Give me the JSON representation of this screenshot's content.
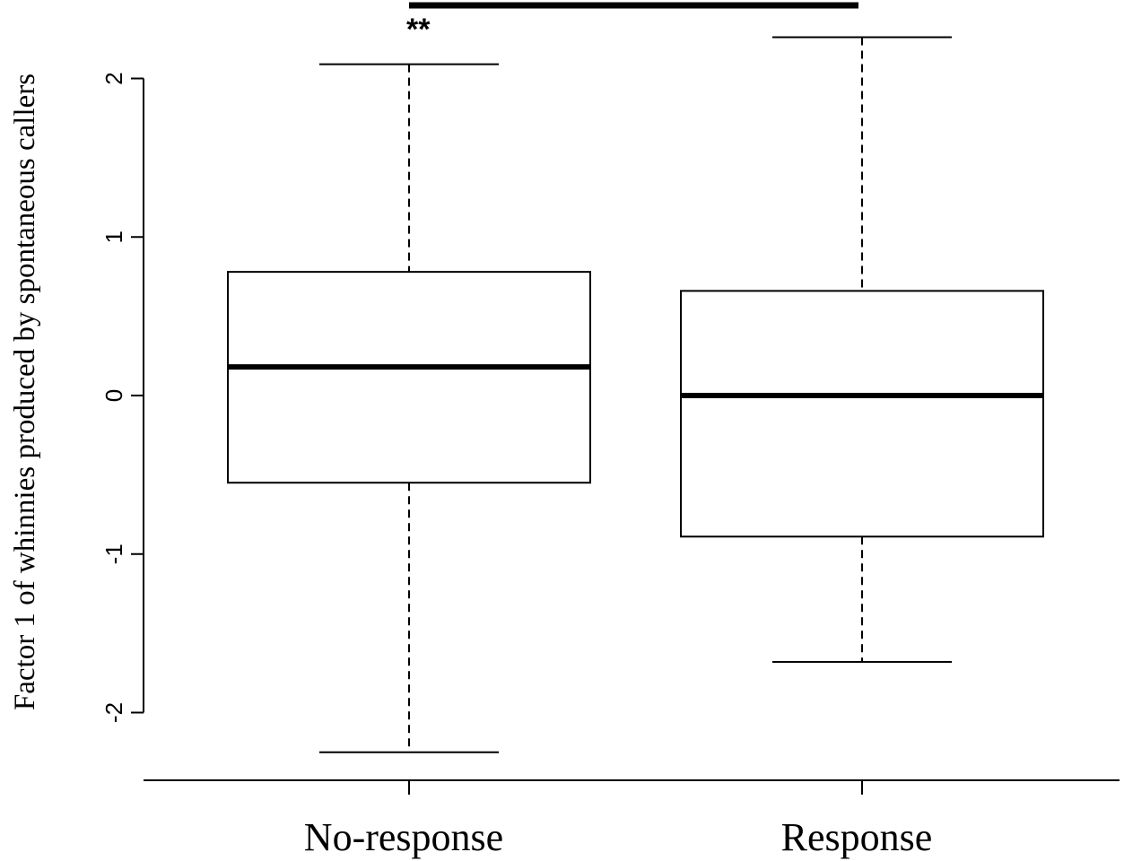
{
  "chart_data": {
    "type": "box",
    "title": "",
    "xlabel": "",
    "ylabel": "Factor 1 of whinnies produced by spontaneous callers",
    "ylim": [
      -2.4,
      2.45
    ],
    "yticks": [
      -2,
      -1,
      0,
      1,
      2
    ],
    "ytick_labels": [
      "-2",
      "-1",
      "0",
      "1",
      "2"
    ],
    "grid": false,
    "categories": [
      "No-response",
      "Response"
    ],
    "boxes": [
      {
        "category": "No-response",
        "whisker_low": -2.25,
        "q1": -0.55,
        "median": 0.18,
        "q3": 0.78,
        "whisker_high": 2.09
      },
      {
        "category": "Response",
        "whisker_low": -1.68,
        "q1": -0.89,
        "median": 0.0,
        "q3": 0.66,
        "whisker_high": 2.26
      }
    ],
    "significance": {
      "label": "**",
      "between": [
        "No-response",
        "Response"
      ]
    }
  }
}
